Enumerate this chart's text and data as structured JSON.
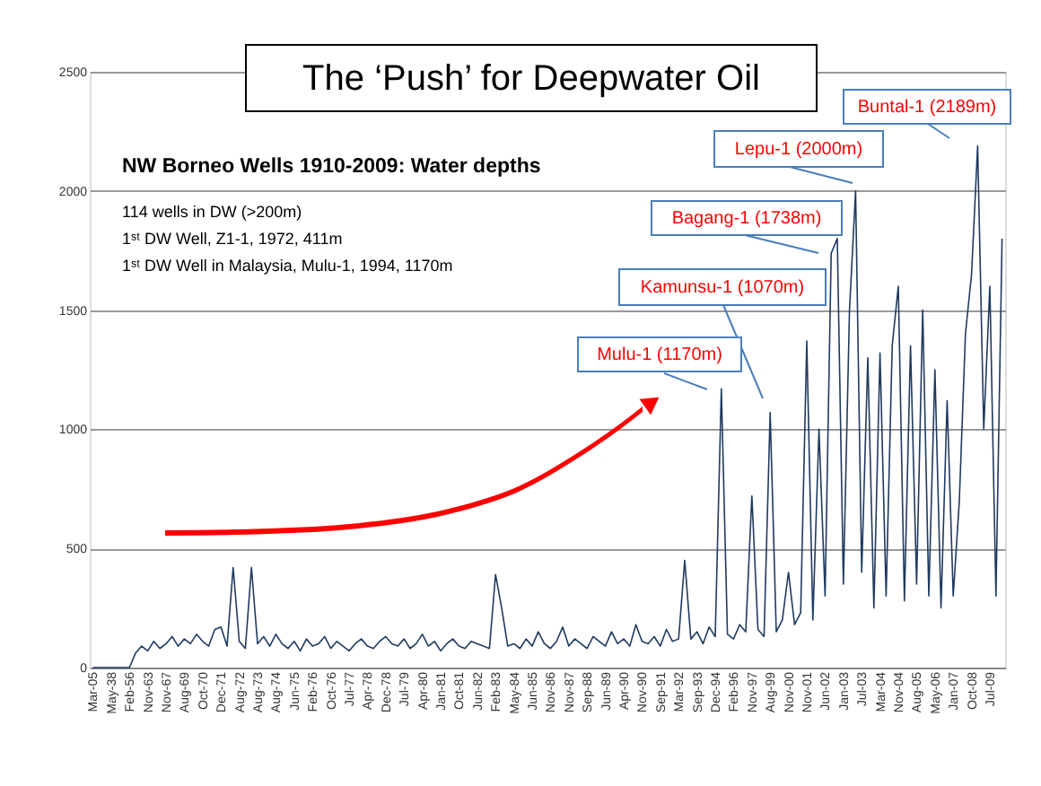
{
  "chart_data": {
    "type": "line",
    "title": "The ‘Push’ for Deepwater Oil",
    "subtitle": "NW Borneo Wells 1910-2009: Water depths",
    "annotations": [
      "114 wells in DW (>200m)",
      "1ˢᵗ DW Well, Z1-1, 1972, 411m",
      "1ˢᵗ DW Well in Malaysia, Mulu-1, 1994, 1170m",
      "Buntal-1 (2189m)",
      "Lepu-1 (2000m)",
      "Bagang-1 (1738m)",
      "Kamunsu-1 (1070m)",
      "Mulu-1 (1170m)"
    ],
    "categories": [
      "Mar-05",
      null,
      null,
      "May-38",
      null,
      null,
      "Feb-56",
      null,
      null,
      "Nov-63",
      null,
      null,
      "Nov-67",
      null,
      null,
      "Aug-69",
      null,
      null,
      "Oct-70",
      null,
      null,
      "Dec-71",
      null,
      null,
      "Aug-72",
      null,
      null,
      "Aug-73",
      null,
      null,
      "Aug-74",
      null,
      null,
      "Jun-75",
      null,
      null,
      "Feb-76",
      null,
      null,
      "Oct-76",
      null,
      null,
      "Jul-77",
      null,
      null,
      "Apr-78",
      null,
      null,
      "Dec-78",
      null,
      null,
      "Jul-79",
      null,
      null,
      "Apr-80",
      null,
      null,
      "Jan-81",
      null,
      null,
      "Oct-81",
      null,
      null,
      "Jun-82",
      null,
      null,
      "Feb-83",
      null,
      null,
      "May-84",
      null,
      null,
      "Jun-85",
      null,
      null,
      "Nov-86",
      null,
      null,
      "Nov-87",
      null,
      null,
      "Sep-88",
      null,
      null,
      "Jun-89",
      null,
      null,
      "Apr-90",
      null,
      null,
      "Nov-90",
      null,
      null,
      "Sep-91",
      null,
      null,
      "Mar-92",
      null,
      null,
      "Sep-93",
      null,
      null,
      "Dec-94",
      null,
      null,
      "Feb-96",
      null,
      null,
      "Nov-97",
      null,
      null,
      "Aug-99",
      null,
      null,
      "Nov-00",
      null,
      null,
      "Nov-01",
      null,
      null,
      "Jun-02",
      null,
      null,
      "Jan-03",
      null,
      null,
      "Jul-03",
      null,
      null,
      "Mar-04",
      null,
      null,
      "Nov-04",
      null,
      null,
      "Aug-05",
      null,
      null,
      "May-06",
      null,
      null,
      "Jan-07",
      null,
      null,
      "Oct-08",
      null,
      null,
      "Jul-09",
      null,
      null
    ],
    "values": [
      0,
      0,
      0,
      0,
      0,
      0,
      0,
      60,
      90,
      70,
      110,
      80,
      100,
      130,
      90,
      120,
      100,
      140,
      110,
      90,
      160,
      170,
      90,
      420,
      110,
      80,
      420,
      100,
      130,
      90,
      140,
      100,
      80,
      110,
      70,
      120,
      90,
      100,
      130,
      80,
      110,
      90,
      70,
      100,
      120,
      90,
      80,
      110,
      130,
      100,
      90,
      120,
      80,
      100,
      140,
      90,
      110,
      70,
      100,
      120,
      90,
      80,
      110,
      100,
      90,
      80,
      390,
      250,
      90,
      100,
      80,
      120,
      90,
      150,
      100,
      80,
      110,
      170,
      90,
      120,
      100,
      80,
      130,
      110,
      90,
      150,
      100,
      120,
      90,
      180,
      110,
      100,
      130,
      90,
      160,
      110,
      120,
      450,
      120,
      150,
      100,
      170,
      130,
      1170,
      140,
      120,
      180,
      150,
      720,
      160,
      130,
      1070,
      150,
      200,
      400,
      180,
      230,
      1370,
      200,
      1000,
      300,
      1738,
      1800,
      350,
      1500,
      2000,
      400,
      1300,
      250,
      1320,
      300,
      1350,
      1600,
      280,
      1350,
      350,
      1500,
      300,
      1250,
      250,
      1120,
      300,
      700,
      1400,
      1650,
      2189,
      1000,
      1600,
      300,
      1800
    ],
    "color": "#1f3a60",
    "ylim": [
      0,
      2500
    ],
    "yticks": [
      0,
      500,
      1000,
      1500,
      2000,
      2500
    ],
    "grid": "y"
  }
}
